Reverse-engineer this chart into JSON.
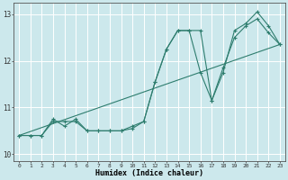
{
  "xlabel": "Humidex (Indice chaleur)",
  "x_values": [
    0,
    1,
    2,
    3,
    4,
    5,
    6,
    7,
    8,
    9,
    10,
    11,
    12,
    13,
    14,
    15,
    16,
    17,
    18,
    19,
    20,
    21,
    22,
    23
  ],
  "line1_y": [
    10.4,
    10.4,
    10.4,
    10.7,
    10.7,
    10.7,
    10.5,
    10.5,
    10.5,
    10.5,
    10.6,
    10.7,
    11.55,
    12.25,
    12.65,
    12.65,
    12.65,
    11.15,
    11.75,
    12.65,
    12.8,
    13.05,
    12.75,
    12.35
  ],
  "line2_y": [
    10.4,
    10.4,
    10.4,
    10.75,
    10.6,
    10.75,
    10.5,
    10.5,
    10.5,
    10.5,
    10.55,
    10.7,
    11.55,
    12.25,
    12.65,
    12.65,
    11.75,
    11.15,
    11.85,
    12.5,
    12.75,
    12.9,
    12.6,
    12.35
  ],
  "trend_x": [
    0,
    23
  ],
  "trend_y": [
    10.4,
    12.35
  ],
  "color": "#2e7d6e",
  "bg_color": "#cce8ec",
  "grid_color": "#ffffff",
  "ylim": [
    9.85,
    13.25
  ],
  "xlim": [
    -0.5,
    23.5
  ],
  "yticks": [
    10,
    11,
    12,
    13
  ],
  "xticks": [
    0,
    1,
    2,
    3,
    4,
    5,
    6,
    7,
    8,
    9,
    10,
    11,
    12,
    13,
    14,
    15,
    16,
    17,
    18,
    19,
    20,
    21,
    22,
    23
  ]
}
